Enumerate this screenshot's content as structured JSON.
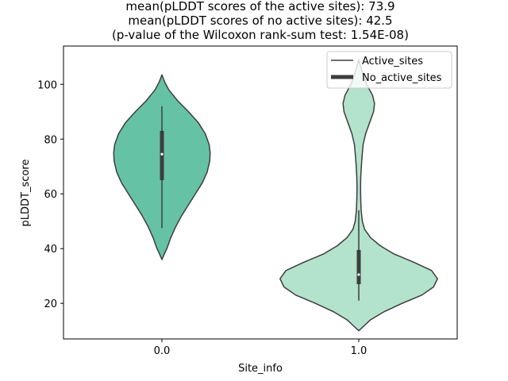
{
  "chart_data": {
    "type": "violin",
    "title_lines": [
      "mean(pLDDT scores of the active sites): 73.9",
      "mean(pLDDT scores of no active sites): 42.5",
      "(p-value of the Wilcoxon rank-sum test: 1.54E-08)"
    ],
    "xlabel": "Site_info",
    "ylabel": "pLDDT_score",
    "ylim": [
      7,
      114
    ],
    "yticks": [
      20,
      40,
      60,
      80,
      100
    ],
    "categories": [
      "0.0",
      "1.0"
    ],
    "legend": {
      "placement": "top-right",
      "entries": [
        {
          "label": "Active_sites",
          "style": "thin"
        },
        {
          "label": "No_active_sites",
          "style": "thick"
        }
      ]
    },
    "violins": [
      {
        "category": "0.0",
        "color": "#66c2a5",
        "min": 47.5,
        "q1": 65,
        "median": 74.5,
        "q3": 83,
        "max": 92,
        "kde_max_half_width": 0.245,
        "profile": [
          [
            36,
            0.0
          ],
          [
            38,
            0.012
          ],
          [
            40,
            0.025
          ],
          [
            44,
            0.045
          ],
          [
            48,
            0.07
          ],
          [
            52,
            0.1
          ],
          [
            56,
            0.135
          ],
          [
            60,
            0.17
          ],
          [
            64,
            0.205
          ],
          [
            68,
            0.23
          ],
          [
            72,
            0.243
          ],
          [
            75,
            0.245
          ],
          [
            78,
            0.24
          ],
          [
            82,
            0.22
          ],
          [
            86,
            0.185
          ],
          [
            90,
            0.135
          ],
          [
            94,
            0.08
          ],
          [
            98,
            0.035
          ],
          [
            101,
            0.013
          ],
          [
            103.5,
            0.0
          ]
        ]
      },
      {
        "category": "1.0",
        "color": "#b3e2cd",
        "min": 21,
        "q1": 27,
        "median": 30.5,
        "q3": 39.5,
        "max": 54,
        "kde_max_half_width": 0.4,
        "profile": [
          [
            10,
            0.0
          ],
          [
            12,
            0.03
          ],
          [
            14,
            0.06
          ],
          [
            17,
            0.13
          ],
          [
            20,
            0.22
          ],
          [
            23,
            0.32
          ],
          [
            26,
            0.38
          ],
          [
            29,
            0.4
          ],
          [
            32,
            0.37
          ],
          [
            35,
            0.28
          ],
          [
            38,
            0.18
          ],
          [
            41,
            0.11
          ],
          [
            44,
            0.06
          ],
          [
            47,
            0.03
          ],
          [
            50,
            0.018
          ],
          [
            54,
            0.012
          ],
          [
            58,
            0.01
          ],
          [
            62,
            0.009
          ],
          [
            66,
            0.01
          ],
          [
            70,
            0.013
          ],
          [
            74,
            0.017
          ],
          [
            78,
            0.022
          ],
          [
            82,
            0.035
          ],
          [
            86,
            0.055
          ],
          [
            90,
            0.075
          ],
          [
            93,
            0.08
          ],
          [
            96,
            0.07
          ],
          [
            100,
            0.04
          ],
          [
            104,
            0.02
          ],
          [
            107,
            0.008
          ],
          [
            109,
            0.0
          ]
        ]
      }
    ]
  }
}
